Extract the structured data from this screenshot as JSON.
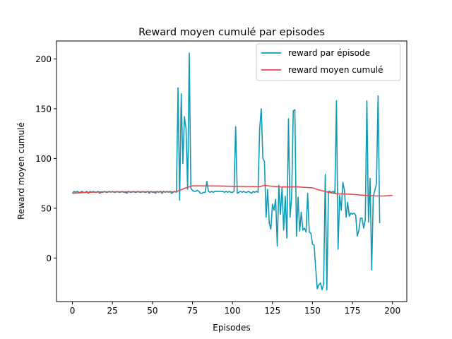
{
  "chart_data": {
    "type": "line",
    "title": "Reward moyen cumulé par episodes",
    "xlabel": "Episodes",
    "ylabel": "Reward moyen cumulé",
    "xlim": [
      -9.95,
      208.95
    ],
    "ylim": [
      -43.8,
      218.1
    ],
    "xticks": [
      0,
      25,
      50,
      75,
      100,
      125,
      150,
      175,
      200
    ],
    "yticks": [
      0,
      50,
      100,
      150,
      200
    ],
    "grid": false,
    "legend_position": "top-right",
    "series": [
      {
        "name": "reward par épisode",
        "color": "#0f9ab6",
        "points": [
          [
            0,
            65
          ],
          [
            1,
            67
          ],
          [
            2,
            66
          ],
          [
            3,
            67
          ],
          [
            4,
            66
          ],
          [
            5,
            66
          ],
          [
            6,
            67
          ],
          [
            7,
            66
          ],
          [
            8,
            66
          ],
          [
            9,
            67
          ],
          [
            10,
            65
          ],
          [
            11,
            67
          ],
          [
            12,
            66
          ],
          [
            13,
            67
          ],
          [
            14,
            66
          ],
          [
            15,
            66
          ],
          [
            16,
            67
          ],
          [
            17,
            65
          ],
          [
            18,
            66
          ],
          [
            19,
            66
          ],
          [
            20,
            67
          ],
          [
            21,
            66
          ],
          [
            22,
            66
          ],
          [
            23,
            67
          ],
          [
            24,
            66
          ],
          [
            25,
            67
          ],
          [
            26,
            66
          ],
          [
            27,
            66
          ],
          [
            28,
            67
          ],
          [
            29,
            66
          ],
          [
            30,
            66
          ],
          [
            31,
            67
          ],
          [
            32,
            66
          ],
          [
            33,
            66
          ],
          [
            34,
            65
          ],
          [
            35,
            67
          ],
          [
            36,
            66
          ],
          [
            37,
            66
          ],
          [
            38,
            67
          ],
          [
            39,
            66
          ],
          [
            40,
            66
          ],
          [
            41,
            67
          ],
          [
            42,
            66
          ],
          [
            43,
            66
          ],
          [
            44,
            67
          ],
          [
            45,
            66
          ],
          [
            46,
            66
          ],
          [
            47,
            67
          ],
          [
            48,
            65
          ],
          [
            49,
            67
          ],
          [
            50,
            66
          ],
          [
            51,
            66
          ],
          [
            52,
            65
          ],
          [
            53,
            67
          ],
          [
            54,
            66
          ],
          [
            55,
            67
          ],
          [
            56,
            65
          ],
          [
            57,
            67
          ],
          [
            58,
            66
          ],
          [
            59,
            67
          ],
          [
            60,
            66
          ],
          [
            61,
            67
          ],
          [
            62,
            65
          ],
          [
            63,
            66
          ],
          [
            64,
            67
          ],
          [
            65,
            66
          ],
          [
            66,
            171
          ],
          [
            67,
            58
          ],
          [
            68,
            165
          ],
          [
            69,
            95
          ],
          [
            70,
            142
          ],
          [
            71,
            130
          ],
          [
            72,
            69
          ],
          [
            73,
            206
          ],
          [
            74,
            70
          ],
          [
            75,
            68
          ],
          [
            76,
            67
          ],
          [
            77,
            67
          ],
          [
            78,
            68
          ],
          [
            79,
            67
          ],
          [
            80,
            65
          ],
          [
            81,
            65
          ],
          [
            82,
            66
          ],
          [
            83,
            66
          ],
          [
            84,
            77
          ],
          [
            85,
            67
          ],
          [
            86,
            66
          ],
          [
            87,
            67
          ],
          [
            88,
            66
          ],
          [
            89,
            67
          ],
          [
            90,
            67
          ],
          [
            91,
            67
          ],
          [
            92,
            67
          ],
          [
            93,
            67
          ],
          [
            94,
            67
          ],
          [
            95,
            66
          ],
          [
            96,
            67
          ],
          [
            97,
            66
          ],
          [
            98,
            67
          ],
          [
            99,
            66
          ],
          [
            100,
            66
          ],
          [
            101,
            67
          ],
          [
            102,
            132
          ],
          [
            103,
            65
          ],
          [
            104,
            66
          ],
          [
            105,
            67
          ],
          [
            106,
            66
          ],
          [
            107,
            67
          ],
          [
            108,
            66
          ],
          [
            109,
            66
          ],
          [
            110,
            67
          ],
          [
            111,
            66
          ],
          [
            112,
            65
          ],
          [
            113,
            67
          ],
          [
            114,
            66
          ],
          [
            115,
            67
          ],
          [
            116,
            66
          ],
          [
            117,
            130
          ],
          [
            118,
            150
          ],
          [
            119,
            100
          ],
          [
            120,
            97
          ],
          [
            121,
            41
          ],
          [
            122,
            69
          ],
          [
            123,
            35
          ],
          [
            124,
            29
          ],
          [
            125,
            54
          ],
          [
            126,
            48
          ],
          [
            127,
            59
          ],
          [
            128,
            12
          ],
          [
            129,
            73
          ],
          [
            130,
            44
          ],
          [
            131,
            71
          ],
          [
            132,
            28
          ],
          [
            133,
            62
          ],
          [
            134,
            20
          ],
          [
            135,
            140
          ],
          [
            136,
            41
          ],
          [
            137,
            62
          ],
          [
            138,
            148
          ],
          [
            139,
            149
          ],
          [
            140,
            22
          ],
          [
            141,
            61
          ],
          [
            142,
            27
          ],
          [
            143,
            46
          ],
          [
            144,
            28
          ],
          [
            145,
            30
          ],
          [
            146,
            26
          ],
          [
            147,
            65
          ],
          [
            148,
            26
          ],
          [
            149,
            25
          ],
          [
            150,
            14
          ],
          [
            151,
            13
          ],
          [
            152,
            -10
          ],
          [
            153,
            -31
          ],
          [
            154,
            -27
          ],
          [
            155,
            -25
          ],
          [
            156,
            -32
          ],
          [
            157,
            -26
          ],
          [
            158,
            84
          ],
          [
            159,
            -32
          ],
          [
            160,
            67
          ],
          [
            161,
            67
          ],
          [
            162,
            66
          ],
          [
            163,
            67
          ],
          [
            164,
            65
          ],
          [
            165,
            158
          ],
          [
            166,
            9
          ],
          [
            167,
            63
          ],
          [
            168,
            48
          ],
          [
            169,
            76
          ],
          [
            170,
            68
          ],
          [
            171,
            41
          ],
          [
            172,
            56
          ],
          [
            173,
            42
          ],
          [
            174,
            45
          ],
          [
            175,
            44
          ],
          [
            176,
            45
          ],
          [
            177,
            43
          ],
          [
            178,
            22
          ],
          [
            179,
            28
          ],
          [
            180,
            40
          ],
          [
            181,
            40
          ],
          [
            182,
            30
          ],
          [
            183,
            38
          ],
          [
            184,
            158
          ],
          [
            185,
            36
          ],
          [
            186,
            80
          ],
          [
            187,
            -12
          ],
          [
            188,
            62
          ],
          [
            189,
            68
          ],
          [
            190,
            75
          ],
          [
            191,
            163
          ],
          [
            192,
            35
          ]
        ]
      },
      {
        "name": "reward moyen cumulé",
        "color": "#e8484a",
        "points": [
          [
            0,
            65
          ],
          [
            10,
            66
          ],
          [
            20,
            66.5
          ],
          [
            30,
            66.5
          ],
          [
            40,
            66.5
          ],
          [
            50,
            66.5
          ],
          [
            60,
            66.5
          ],
          [
            65,
            66.6
          ],
          [
            70,
            70
          ],
          [
            75,
            72.5
          ],
          [
            80,
            72.5
          ],
          [
            90,
            72.4
          ],
          [
            100,
            72
          ],
          [
            110,
            71.8
          ],
          [
            117,
            71.7
          ],
          [
            120,
            73
          ],
          [
            125,
            72
          ],
          [
            130,
            71.5
          ],
          [
            135,
            71.3
          ],
          [
            140,
            71.6
          ],
          [
            145,
            71
          ],
          [
            150,
            70.5
          ],
          [
            155,
            68
          ],
          [
            160,
            66
          ],
          [
            165,
            64.5
          ],
          [
            170,
            64.3
          ],
          [
            175,
            64
          ],
          [
            180,
            63.3
          ],
          [
            185,
            62.7
          ],
          [
            190,
            62.3
          ],
          [
            195,
            62.3
          ],
          [
            200,
            63
          ]
        ]
      }
    ]
  }
}
